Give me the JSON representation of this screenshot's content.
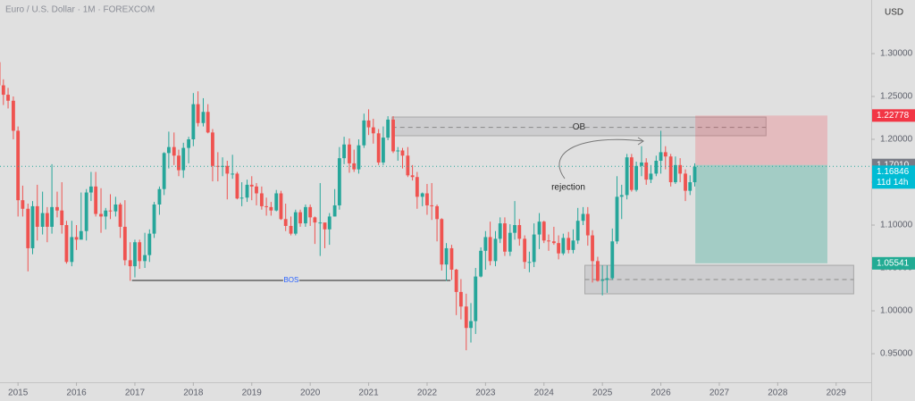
{
  "chart_data": {
    "type": "candlestick",
    "title": "Euro / U.S. Dollar · 1M · FOREXCOM",
    "currency": "USD",
    "up_color": "#26a69a",
    "down_color": "#ef5350",
    "x": [
      2014.67,
      2014.75,
      2014.83,
      2014.92,
      2015.0,
      2015.08,
      2015.17,
      2015.25,
      2015.33,
      2015.42,
      2015.5,
      2015.58,
      2015.67,
      2015.75,
      2015.83,
      2015.92,
      2016.0,
      2016.08,
      2016.17,
      2016.25,
      2016.33,
      2016.42,
      2016.5,
      2016.58,
      2016.67,
      2016.75,
      2016.83,
      2016.92,
      2017.0,
      2017.08,
      2017.17,
      2017.25,
      2017.33,
      2017.42,
      2017.5,
      2017.58,
      2017.67,
      2017.75,
      2017.83,
      2017.92,
      2018.0,
      2018.08,
      2018.17,
      2018.25,
      2018.33,
      2018.42,
      2018.5,
      2018.58,
      2018.67,
      2018.75,
      2018.83,
      2018.92,
      2019.0,
      2019.08,
      2019.17,
      2019.25,
      2019.33,
      2019.42,
      2019.5,
      2019.58,
      2019.67,
      2019.75,
      2019.83,
      2019.92,
      2020.0,
      2020.08,
      2020.17,
      2020.25,
      2020.33,
      2020.42,
      2020.5,
      2020.58,
      2020.67,
      2020.75,
      2020.83,
      2020.92,
      2021.0,
      2021.08,
      2021.17,
      2021.25,
      2021.33,
      2021.42,
      2021.5,
      2021.58,
      2021.67,
      2021.75,
      2021.83,
      2021.92,
      2022.0,
      2022.08,
      2022.17,
      2022.25,
      2022.33,
      2022.42,
      2022.5,
      2022.58,
      2022.67,
      2022.75,
      2022.83,
      2022.92,
      2023.0,
      2023.08,
      2023.17,
      2023.25,
      2023.33,
      2023.42,
      2023.5,
      2023.58,
      2023.67,
      2023.75,
      2023.83,
      2023.92,
      2024.0,
      2024.08,
      2024.17,
      2024.25,
      2024.33,
      2024.42,
      2024.5,
      2024.58,
      2024.67,
      2024.75,
      2024.83,
      2024.92,
      2025.0,
      2025.08,
      2025.17,
      2025.25,
      2025.33,
      2025.42,
      2025.5,
      2025.58,
      2025.67,
      2025.75,
      2025.83,
      2025.92,
      2026.0,
      2026.08,
      2026.17,
      2026.25,
      2026.33,
      2026.42,
      2026.5,
      2026.58
    ],
    "open": [
      1.29,
      1.263,
      1.252,
      1.245,
      1.21,
      1.129,
      1.119,
      1.073,
      1.122,
      1.098,
      1.114,
      1.098,
      1.121,
      1.117,
      1.1,
      1.057,
      1.086,
      1.083,
      1.093,
      1.138,
      1.145,
      1.113,
      1.11,
      1.117,
      1.116,
      1.124,
      1.098,
      1.059,
      1.052,
      1.08,
      1.058,
      1.065,
      1.09,
      1.124,
      1.142,
      1.184,
      1.191,
      1.181,
      1.164,
      1.19,
      1.2,
      1.241,
      1.219,
      1.232,
      1.208,
      1.169,
      1.168,
      1.169,
      1.16,
      1.16,
      1.131,
      1.132,
      1.147,
      1.145,
      1.137,
      1.122,
      1.121,
      1.117,
      1.137,
      1.107,
      1.099,
      1.09,
      1.115,
      1.102,
      1.121,
      1.109,
      1.103,
      1.103,
      1.095,
      1.11,
      1.123,
      1.178,
      1.194,
      1.172,
      1.165,
      1.193,
      1.222,
      1.214,
      1.207,
      1.173,
      1.202,
      1.223,
      1.186,
      1.187,
      1.181,
      1.158,
      1.156,
      1.133,
      1.137,
      1.123,
      1.122,
      1.107,
      1.054,
      1.073,
      1.048,
      1.022,
      1.005,
      0.98,
      0.988,
      1.04,
      1.07,
      1.086,
      1.058,
      1.084,
      1.102,
      1.069,
      1.091,
      1.1,
      1.084,
      1.057,
      1.057,
      1.089,
      1.104,
      1.082,
      1.081,
      1.079,
      1.067,
      1.085,
      1.071,
      1.082,
      1.105,
      1.113,
      1.088,
      1.058,
      1.035,
      1.036,
      1.038,
      1.081,
      1.133,
      1.135,
      1.179,
      1.141,
      1.169,
      1.173,
      1.153,
      1.16,
      1.175,
      1.185,
      1.18,
      1.15,
      1.17,
      1.16,
      1.14,
      1.15
    ],
    "high": [
      1.3,
      1.27,
      1.26,
      1.25,
      1.215,
      1.146,
      1.125,
      1.128,
      1.147,
      1.139,
      1.121,
      1.171,
      1.139,
      1.15,
      1.105,
      1.105,
      1.1,
      1.138,
      1.142,
      1.162,
      1.162,
      1.143,
      1.12,
      1.136,
      1.133,
      1.126,
      1.129,
      1.08,
      1.083,
      1.083,
      1.091,
      1.095,
      1.127,
      1.145,
      1.185,
      1.209,
      1.208,
      1.188,
      1.196,
      1.203,
      1.254,
      1.256,
      1.248,
      1.241,
      1.212,
      1.185,
      1.179,
      1.175,
      1.182,
      1.162,
      1.15,
      1.153,
      1.157,
      1.149,
      1.145,
      1.132,
      1.127,
      1.141,
      1.14,
      1.125,
      1.11,
      1.118,
      1.118,
      1.124,
      1.124,
      1.11,
      1.149,
      1.102,
      1.114,
      1.142,
      1.191,
      1.203,
      1.201,
      1.188,
      1.2,
      1.23,
      1.235,
      1.224,
      1.212,
      1.215,
      1.227,
      1.227,
      1.191,
      1.19,
      1.191,
      1.17,
      1.162,
      1.138,
      1.148,
      1.149,
      1.124,
      1.108,
      1.079,
      1.077,
      1.049,
      1.037,
      1.02,
      1.009,
      1.05,
      1.074,
      1.093,
      1.104,
      1.093,
      1.109,
      1.109,
      1.101,
      1.128,
      1.107,
      1.088,
      1.069,
      1.102,
      1.114,
      1.105,
      1.089,
      1.098,
      1.088,
      1.09,
      1.092,
      1.095,
      1.12,
      1.121,
      1.121,
      1.094,
      1.063,
      1.053,
      1.053,
      1.096,
      1.157,
      1.147,
      1.183,
      1.183,
      1.174,
      1.192,
      1.178,
      1.17,
      1.181,
      1.21,
      1.192,
      1.183,
      1.18,
      1.178,
      1.165,
      1.158,
      1.172
    ],
    "low": [
      1.255,
      1.24,
      1.236,
      1.2,
      1.11,
      1.11,
      1.046,
      1.066,
      1.082,
      1.089,
      1.08,
      1.09,
      1.109,
      1.09,
      1.055,
      1.052,
      1.071,
      1.085,
      1.082,
      1.128,
      1.11,
      1.091,
      1.095,
      1.107,
      1.11,
      1.085,
      1.053,
      1.035,
      1.039,
      1.049,
      1.05,
      1.057,
      1.085,
      1.112,
      1.135,
      1.166,
      1.17,
      1.157,
      1.155,
      1.172,
      1.192,
      1.215,
      1.215,
      1.207,
      1.151,
      1.151,
      1.157,
      1.13,
      1.154,
      1.13,
      1.122,
      1.127,
      1.129,
      1.123,
      1.118,
      1.111,
      1.111,
      1.116,
      1.106,
      1.093,
      1.088,
      1.088,
      1.098,
      1.098,
      1.099,
      1.078,
      1.064,
      1.073,
      1.077,
      1.11,
      1.118,
      1.171,
      1.161,
      1.162,
      1.16,
      1.19,
      1.205,
      1.195,
      1.17,
      1.17,
      1.199,
      1.184,
      1.175,
      1.166,
      1.156,
      1.152,
      1.119,
      1.122,
      1.112,
      1.106,
      1.081,
      1.047,
      1.035,
      1.036,
      0.995,
      0.99,
      0.954,
      0.963,
      0.973,
      1.039,
      1.048,
      1.053,
      1.052,
      1.079,
      1.064,
      1.064,
      1.083,
      1.076,
      1.049,
      1.045,
      1.051,
      1.072,
      1.079,
      1.07,
      1.077,
      1.06,
      1.065,
      1.067,
      1.067,
      1.078,
      1.1,
      1.076,
      1.033,
      1.034,
      1.018,
      1.021,
      1.036,
      1.078,
      1.107,
      1.13,
      1.139,
      1.139,
      1.157,
      1.147,
      1.149,
      1.157,
      1.16,
      1.165,
      1.145,
      1.148,
      1.15,
      1.128,
      1.135,
      1.145
    ],
    "close": [
      1.263,
      1.252,
      1.245,
      1.21,
      1.129,
      1.119,
      1.073,
      1.122,
      1.098,
      1.114,
      1.098,
      1.121,
      1.117,
      1.1,
      1.057,
      1.086,
      1.083,
      1.093,
      1.138,
      1.145,
      1.113,
      1.11,
      1.117,
      1.116,
      1.124,
      1.098,
      1.059,
      1.052,
      1.08,
      1.058,
      1.065,
      1.09,
      1.124,
      1.142,
      1.184,
      1.191,
      1.181,
      1.164,
      1.19,
      1.2,
      1.241,
      1.219,
      1.232,
      1.208,
      1.169,
      1.168,
      1.169,
      1.16,
      1.16,
      1.131,
      1.132,
      1.147,
      1.145,
      1.137,
      1.122,
      1.121,
      1.117,
      1.137,
      1.107,
      1.099,
      1.09,
      1.115,
      1.102,
      1.121,
      1.109,
      1.103,
      1.103,
      1.095,
      1.11,
      1.123,
      1.178,
      1.194,
      1.172,
      1.165,
      1.193,
      1.222,
      1.214,
      1.207,
      1.173,
      1.202,
      1.223,
      1.186,
      1.187,
      1.181,
      1.158,
      1.156,
      1.133,
      1.137,
      1.123,
      1.122,
      1.107,
      1.054,
      1.073,
      1.048,
      1.022,
      1.005,
      0.98,
      0.988,
      1.04,
      1.07,
      1.086,
      1.058,
      1.084,
      1.102,
      1.069,
      1.091,
      1.1,
      1.084,
      1.057,
      1.057,
      1.089,
      1.104,
      1.082,
      1.081,
      1.079,
      1.067,
      1.085,
      1.071,
      1.082,
      1.105,
      1.113,
      1.088,
      1.058,
      1.035,
      1.036,
      1.038,
      1.081,
      1.133,
      1.135,
      1.179,
      1.141,
      1.169,
      1.173,
      1.153,
      1.16,
      1.175,
      1.185,
      1.18,
      1.15,
      1.17,
      1.16,
      1.14,
      1.15,
      1.168
    ],
    "xlim": [
      2014.6,
      2029.6
    ],
    "xticks": [
      2015,
      2016,
      2017,
      2018,
      2019,
      2020,
      2021,
      2022,
      2023,
      2024,
      2025,
      2026,
      2027,
      2028,
      2029
    ],
    "ylim": [
      0.9167,
      1.3625
    ],
    "yticks": [
      {
        "value": 0.95,
        "label": "0.95000"
      },
      {
        "value": 1.0,
        "label": "1.00000"
      },
      {
        "value": 1.05,
        "label": "1.05000"
      },
      {
        "value": 1.1,
        "label": "1.10000"
      },
      {
        "value": 1.15,
        "label": "1.15000"
      },
      {
        "value": 1.2,
        "label": "1.20000"
      },
      {
        "value": 1.25,
        "label": "1.25000"
      },
      {
        "value": 1.3,
        "label": "1.30000"
      }
    ],
    "last_price": 1.16846,
    "countdown": "11d 14h",
    "position": {
      "x": [
        2026.59,
        2028.85
      ],
      "stop": 1.22778,
      "entry": {
        "value": 1.1701,
        "label": "1.17010"
      },
      "target": 1.05541
    },
    "zones": [
      {
        "label": "OB",
        "x": [
          2021.4,
          2027.8
        ],
        "y": [
          1.2042,
          1.226
        ],
        "mid": 1.214
      },
      {
        "x": [
          2024.7,
          2029.3
        ],
        "y": [
          1.0198,
          1.0531
        ],
        "mid": 1.0365
      }
    ],
    "bos": {
      "label": "BOS",
      "x": [
        2016.95,
        2022.4
      ],
      "y": 1.0354
    },
    "rejection": "rejection"
  }
}
